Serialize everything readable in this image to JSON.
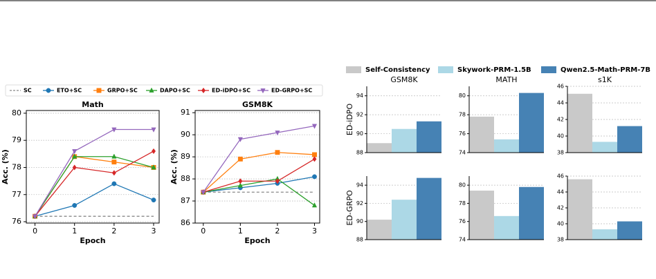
{
  "chart_data": [
    {
      "type": "line",
      "title": "Math",
      "xlabel": "Epoch",
      "ylabel": "Acc. (%)",
      "x": [
        0,
        1,
        2,
        3
      ],
      "xlim": [
        -0.22,
        3.14
      ],
      "xticks": [
        0,
        1,
        2,
        3
      ],
      "ylim": [
        75.95,
        80.1
      ],
      "yticks": [
        76,
        77,
        78,
        79,
        80
      ],
      "grid": true,
      "series": [
        {
          "name": "SC",
          "color": "#888888",
          "dash": true,
          "values": [
            76.2,
            76.2,
            76.2,
            76.2
          ]
        },
        {
          "name": "ETO+SC",
          "color": "#1f77b4",
          "marker": "circle",
          "values": [
            76.2,
            76.6,
            77.4,
            76.8
          ]
        },
        {
          "name": "GRPO+SC",
          "color": "#ff7f0e",
          "marker": "square",
          "values": [
            76.2,
            78.4,
            78.2,
            78.0
          ]
        },
        {
          "name": "DAPO+SC",
          "color": "#2ca02c",
          "marker": "triangle-up",
          "values": [
            76.2,
            78.4,
            78.4,
            78.0
          ]
        },
        {
          "name": "ED-iDPO+SC",
          "color": "#d62728",
          "marker": "diamond",
          "values": [
            76.2,
            78.0,
            77.8,
            78.6
          ]
        },
        {
          "name": "ED-GRPO+SC",
          "color": "#9467bd",
          "marker": "triangle-down",
          "values": [
            76.2,
            78.6,
            79.4,
            79.4
          ]
        }
      ]
    },
    {
      "type": "line",
      "title": "GSM8K",
      "xlabel": "Epoch",
      "ylabel": "Acc. (%)",
      "x": [
        0,
        1,
        2,
        3
      ],
      "xlim": [
        -0.22,
        3.14
      ],
      "xticks": [
        0,
        1,
        2,
        3
      ],
      "ylim": [
        86,
        91.1
      ],
      "yticks": [
        86,
        87,
        88,
        89,
        90,
        91
      ],
      "grid": true,
      "series": [
        {
          "color": "#888888",
          "dash": true,
          "values": [
            87.4,
            87.4,
            87.4,
            87.4
          ]
        },
        {
          "color": "#1f77b4",
          "marker": "circle",
          "values": [
            87.4,
            87.6,
            87.8,
            88.1
          ]
        },
        {
          "color": "#ff7f0e",
          "marker": "square",
          "values": [
            87.4,
            88.9,
            89.2,
            89.1
          ]
        },
        {
          "color": "#2ca02c",
          "marker": "triangle-up",
          "values": [
            87.4,
            87.7,
            88.0,
            86.8
          ]
        },
        {
          "color": "#d62728",
          "marker": "diamond",
          "values": [
            87.4,
            87.9,
            87.9,
            88.9
          ]
        },
        {
          "color": "#9467bd",
          "marker": "triangle-down",
          "values": [
            87.4,
            89.8,
            90.1,
            90.4
          ]
        }
      ]
    },
    {
      "type": "grouped-bar",
      "grid": true,
      "series": [
        {
          "name": "Self-Consistency",
          "color": "#c9c9c9"
        },
        {
          "name": "Skywork-PRM-1.5B",
          "color": "#acd8e6"
        },
        {
          "name": "Qwen2.5-Math-PRM-7B",
          "color": "#4682b4"
        }
      ],
      "columns": [
        "GSM8K",
        "MATH",
        "s1K"
      ],
      "rows": [
        "ED-iDPO",
        "ED-GRPO"
      ],
      "panels": [
        [
          {
            "ylim": [
              88,
              95
            ],
            "yticks": [
              88,
              90,
              92,
              94
            ],
            "values": [
              89.0,
              90.5,
              91.3
            ]
          },
          {
            "ylim": [
              74,
              81
            ],
            "yticks": [
              74,
              76,
              78,
              80
            ],
            "values": [
              77.8,
              75.4,
              80.3
            ]
          },
          {
            "ylim": [
              38,
              46
            ],
            "yticks": [
              38,
              40,
              42,
              44,
              46
            ],
            "values": [
              45.1,
              39.3,
              41.2
            ]
          }
        ],
        [
          {
            "ylim": [
              88,
              95
            ],
            "yticks": [
              88,
              90,
              92,
              94
            ],
            "values": [
              90.2,
              92.4,
              94.8
            ]
          },
          {
            "ylim": [
              74,
              81
            ],
            "yticks": [
              74,
              76,
              78,
              80
            ],
            "values": [
              79.4,
              76.6,
              79.8
            ]
          },
          {
            "ylim": [
              38,
              46
            ],
            "yticks": [
              38,
              40,
              42,
              44,
              46
            ],
            "values": [
              45.6,
              39.3,
              40.3
            ]
          }
        ]
      ]
    }
  ]
}
